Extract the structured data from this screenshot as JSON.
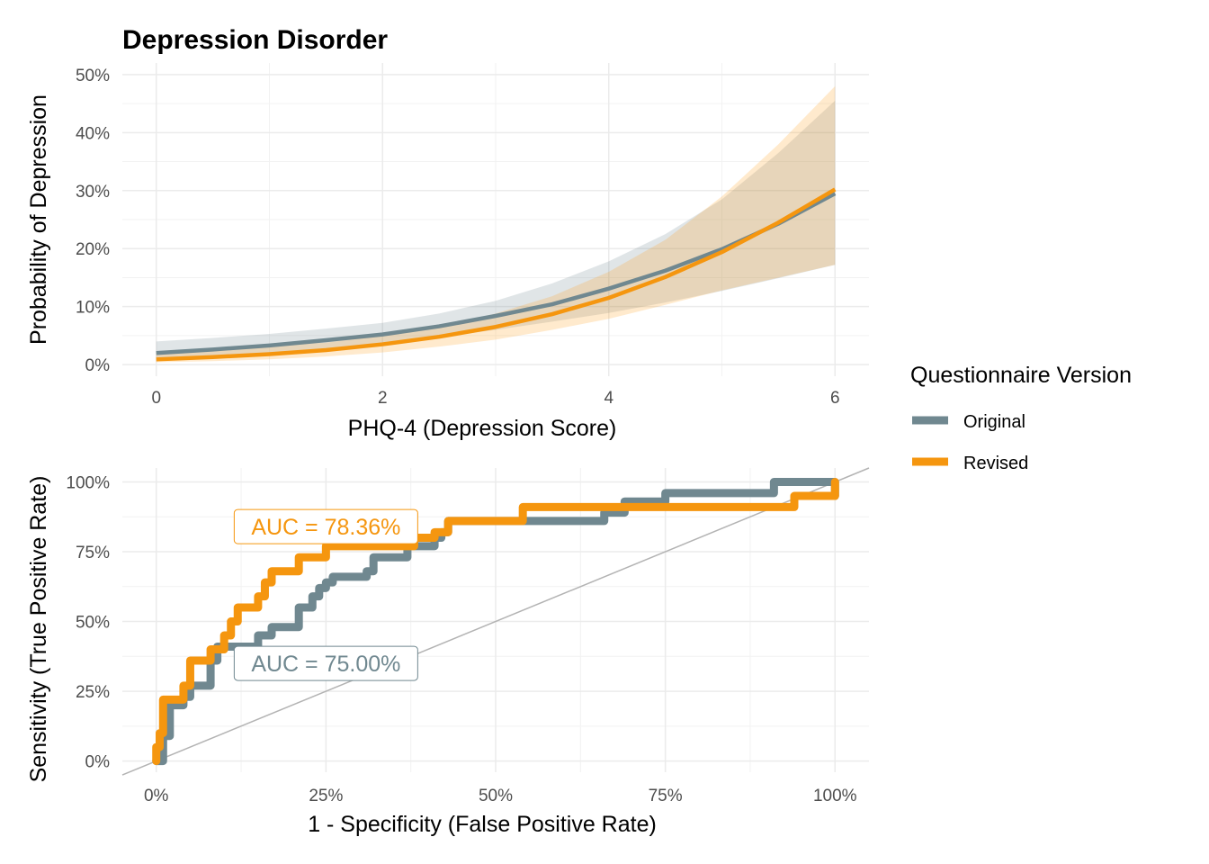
{
  "figure": {
    "title": "Depression Disorder",
    "legend": {
      "title": "Questionnaire Version",
      "placement": "right",
      "items": [
        {
          "label": "Original",
          "color": "#708890"
        },
        {
          "label": "Revised",
          "color": "#F5960F"
        }
      ]
    }
  },
  "chart_data": [
    {
      "type": "line",
      "xlabel": "PHQ-4 (Depression Score)",
      "ylabel": "Probability of Depression",
      "xlim": [
        -0.3,
        6.3
      ],
      "ylim": [
        -0.02,
        0.52
      ],
      "x_ticks": [
        {
          "value": 0,
          "label": "0"
        },
        {
          "value": 2,
          "label": "2"
        },
        {
          "value": 4,
          "label": "4"
        },
        {
          "value": 6,
          "label": "6"
        }
      ],
      "y_ticks": [
        {
          "value": 0,
          "label": "0%"
        },
        {
          "value": 0.1,
          "label": "10%"
        },
        {
          "value": 0.2,
          "label": "20%"
        },
        {
          "value": 0.3,
          "label": "30%"
        },
        {
          "value": 0.4,
          "label": "40%"
        },
        {
          "value": 0.5,
          "label": "50%"
        }
      ],
      "grid": true,
      "series": [
        {
          "name": "Original",
          "color": "#708890",
          "band_color": "#708890",
          "x": [
            0,
            0.5,
            1,
            1.5,
            2,
            2.5,
            3,
            3.5,
            4,
            4.5,
            5,
            5.5,
            6
          ],
          "y": [
            0.02,
            0.026,
            0.033,
            0.042,
            0.052,
            0.066,
            0.084,
            0.104,
            0.131,
            0.162,
            0.199,
            0.243,
            0.295
          ],
          "lower": [
            0.011,
            0.015,
            0.02,
            0.027,
            0.036,
            0.047,
            0.06,
            0.074,
            0.089,
            0.107,
            0.127,
            0.149,
            0.172
          ],
          "upper": [
            0.04,
            0.046,
            0.053,
            0.062,
            0.072,
            0.088,
            0.11,
            0.14,
            0.178,
            0.225,
            0.285,
            0.365,
            0.455
          ]
        },
        {
          "name": "Revised",
          "color": "#F5960F",
          "band_color": "#FF9E1A",
          "x": [
            0,
            0.5,
            1,
            1.5,
            2,
            2.5,
            3,
            3.5,
            4,
            4.5,
            5,
            5.5,
            6
          ],
          "y": [
            0.009,
            0.013,
            0.018,
            0.025,
            0.035,
            0.048,
            0.065,
            0.087,
            0.115,
            0.151,
            0.194,
            0.245,
            0.302
          ],
          "lower": [
            0.004,
            0.006,
            0.009,
            0.014,
            0.021,
            0.031,
            0.043,
            0.06,
            0.079,
            0.103,
            0.128,
            0.15,
            0.172
          ],
          "upper": [
            0.022,
            0.027,
            0.032,
            0.038,
            0.05,
            0.064,
            0.088,
            0.118,
            0.16,
            0.215,
            0.29,
            0.38,
            0.48
          ]
        }
      ]
    },
    {
      "type": "line",
      "xlabel": "1 - Specificity (False Positive Rate)",
      "ylabel": "Sensitivity (True Positive Rate)",
      "xlim": [
        -0.05,
        1.05
      ],
      "ylim": [
        -0.04,
        1.05
      ],
      "x_ticks": [
        {
          "value": 0,
          "label": "0%"
        },
        {
          "value": 0.25,
          "label": "25%"
        },
        {
          "value": 0.5,
          "label": "50%"
        },
        {
          "value": 0.75,
          "label": "75%"
        },
        {
          "value": 1,
          "label": "100%"
        }
      ],
      "y_ticks": [
        {
          "value": 0,
          "label": "0%"
        },
        {
          "value": 0.25,
          "label": "25%"
        },
        {
          "value": 0.5,
          "label": "50%"
        },
        {
          "value": 0.75,
          "label": "75%"
        },
        {
          "value": 1,
          "label": "100%"
        }
      ],
      "grid": true,
      "reference_line": {
        "x": [
          0,
          1
        ],
        "y": [
          0,
          1
        ],
        "color": "#b3b3b3"
      },
      "series": [
        {
          "name": "Original",
          "color": "#708890",
          "x": [
            0,
            0.01,
            0.01,
            0.02,
            0.02,
            0.04,
            0.04,
            0.05,
            0.05,
            0.08,
            0.08,
            0.09,
            0.09,
            0.15,
            0.15,
            0.17,
            0.17,
            0.21,
            0.21,
            0.23,
            0.23,
            0.24,
            0.24,
            0.25,
            0.25,
            0.26,
            0.26,
            0.31,
            0.31,
            0.32,
            0.32,
            0.37,
            0.37,
            0.41,
            0.41,
            0.42,
            0.42,
            0.43,
            0.43,
            0.66,
            0.66,
            0.69,
            0.69,
            0.75,
            0.75,
            0.91,
            0.91,
            1,
            1
          ],
          "y": [
            0,
            0,
            0.09,
            0.09,
            0.2,
            0.2,
            0.23,
            0.23,
            0.27,
            0.27,
            0.36,
            0.36,
            0.41,
            0.41,
            0.45,
            0.45,
            0.48,
            0.48,
            0.55,
            0.55,
            0.59,
            0.59,
            0.62,
            0.62,
            0.64,
            0.64,
            0.66,
            0.66,
            0.68,
            0.68,
            0.73,
            0.73,
            0.77,
            0.77,
            0.8,
            0.8,
            0.82,
            0.82,
            0.86,
            0.86,
            0.89,
            0.89,
            0.93,
            0.93,
            0.96,
            0.96,
            1.0,
            1.0,
            0.95
          ]
        },
        {
          "name": "Revised",
          "color": "#F5960F",
          "x": [
            0,
            0,
            0.005,
            0.005,
            0.01,
            0.01,
            0.04,
            0.04,
            0.05,
            0.05,
            0.08,
            0.08,
            0.1,
            0.1,
            0.11,
            0.11,
            0.12,
            0.12,
            0.15,
            0.15,
            0.16,
            0.16,
            0.17,
            0.17,
            0.21,
            0.21,
            0.25,
            0.25,
            0.38,
            0.38,
            0.41,
            0.41,
            0.43,
            0.43,
            0.54,
            0.54,
            0.94,
            0.94,
            1,
            1
          ],
          "y": [
            0,
            0.05,
            0.05,
            0.1,
            0.1,
            0.22,
            0.22,
            0.27,
            0.27,
            0.36,
            0.36,
            0.4,
            0.4,
            0.45,
            0.45,
            0.5,
            0.5,
            0.55,
            0.55,
            0.59,
            0.59,
            0.64,
            0.64,
            0.68,
            0.68,
            0.73,
            0.73,
            0.77,
            0.77,
            0.8,
            0.8,
            0.82,
            0.82,
            0.86,
            0.86,
            0.91,
            0.91,
            0.95,
            0.95,
            1.0
          ]
        }
      ],
      "annotations": [
        {
          "text": "AUC = 78.36%",
          "series": "Revised",
          "color": "#F5960F",
          "x": 0.25,
          "y": 0.84
        },
        {
          "text": "AUC = 75.00%",
          "series": "Original",
          "color": "#708890",
          "x": 0.25,
          "y": 0.35
        }
      ]
    }
  ]
}
